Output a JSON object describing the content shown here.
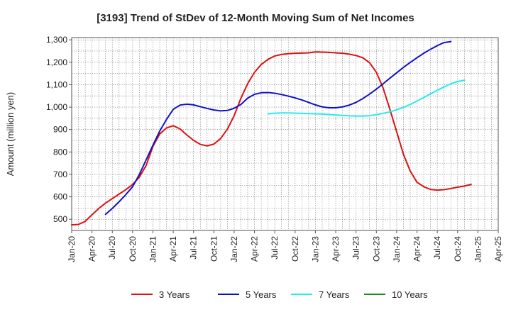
{
  "chart_data": {
    "type": "line",
    "title": "[3193]  Trend of StDev of 12-Month Moving Sum of Net Incomes",
    "xlabel": "",
    "ylabel": "Amount (million yen)",
    "ylim": [
      450,
      1310
    ],
    "yticks": [
      500,
      600,
      700,
      800,
      900,
      1000,
      1100,
      1200,
      1300
    ],
    "ytick_labels": [
      "500",
      "600",
      "700",
      "800",
      "900",
      "1,000",
      "1,100",
      "1,200",
      "1,300"
    ],
    "xlim": [
      "2020-01",
      "2025-04"
    ],
    "xtick_labels": [
      "Jan-20",
      "Apr-20",
      "Jul-20",
      "Oct-20",
      "Jan-21",
      "Apr-21",
      "Jul-21",
      "Oct-21",
      "Jan-22",
      "Apr-22",
      "Jul-22",
      "Oct-22",
      "Jan-23",
      "Apr-23",
      "Jul-23",
      "Oct-23",
      "Jan-24",
      "Apr-24",
      "Jul-24",
      "Oct-24",
      "Jan-25",
      "Apr-25"
    ],
    "grid": true,
    "legend_position": "bottom",
    "series": [
      {
        "name": "3 Years",
        "color": "#dd1111",
        "points": [
          [
            "2020-01",
            475
          ],
          [
            "2020-02",
            477
          ],
          [
            "2020-03",
            490
          ],
          [
            "2020-04",
            520
          ],
          [
            "2020-05",
            548
          ],
          [
            "2020-06",
            572
          ],
          [
            "2020-07",
            592
          ],
          [
            "2020-08",
            612
          ],
          [
            "2020-09",
            632
          ],
          [
            "2020-10",
            655
          ],
          [
            "2020-11",
            688
          ],
          [
            "2020-12",
            740
          ],
          [
            "2021-01",
            825
          ],
          [
            "2021-02",
            880
          ],
          [
            "2021-03",
            907
          ],
          [
            "2021-04",
            917
          ],
          [
            "2021-05",
            903
          ],
          [
            "2021-06",
            876
          ],
          [
            "2021-07",
            852
          ],
          [
            "2021-08",
            834
          ],
          [
            "2021-09",
            827
          ],
          [
            "2021-10",
            835
          ],
          [
            "2021-11",
            860
          ],
          [
            "2021-12",
            902
          ],
          [
            "2022-01",
            962
          ],
          [
            "2022-02",
            1040
          ],
          [
            "2022-03",
            1105
          ],
          [
            "2022-04",
            1155
          ],
          [
            "2022-05",
            1190
          ],
          [
            "2022-06",
            1213
          ],
          [
            "2022-07",
            1228
          ],
          [
            "2022-08",
            1235
          ],
          [
            "2022-09",
            1238
          ],
          [
            "2022-10",
            1240
          ],
          [
            "2022-11",
            1241
          ],
          [
            "2022-12",
            1242
          ],
          [
            "2023-01",
            1246
          ],
          [
            "2023-02",
            1245
          ],
          [
            "2023-03",
            1244
          ],
          [
            "2023-04",
            1242
          ],
          [
            "2023-05",
            1240
          ],
          [
            "2023-06",
            1236
          ],
          [
            "2023-07",
            1230
          ],
          [
            "2023-08",
            1220
          ],
          [
            "2023-09",
            1198
          ],
          [
            "2023-10",
            1155
          ],
          [
            "2023-11",
            1085
          ],
          [
            "2023-12",
            990
          ],
          [
            "2024-01",
            890
          ],
          [
            "2024-02",
            790
          ],
          [
            "2024-03",
            715
          ],
          [
            "2024-04",
            665
          ],
          [
            "2024-05",
            645
          ],
          [
            "2024-06",
            633
          ],
          [
            "2024-07",
            630
          ],
          [
            "2024-08",
            632
          ],
          [
            "2024-09",
            637
          ],
          [
            "2024-10",
            643
          ],
          [
            "2024-11",
            648
          ],
          [
            "2024-12",
            655
          ]
        ]
      },
      {
        "name": "5 Years",
        "color": "#1111cc",
        "points": [
          [
            "2020-06",
            522
          ],
          [
            "2020-07",
            548
          ],
          [
            "2020-08",
            578
          ],
          [
            "2020-09",
            610
          ],
          [
            "2020-10",
            645
          ],
          [
            "2020-11",
            700
          ],
          [
            "2020-12",
            765
          ],
          [
            "2021-01",
            830
          ],
          [
            "2021-02",
            893
          ],
          [
            "2021-03",
            945
          ],
          [
            "2021-04",
            990
          ],
          [
            "2021-05",
            1009
          ],
          [
            "2021-06",
            1013
          ],
          [
            "2021-07",
            1010
          ],
          [
            "2021-08",
            1002
          ],
          [
            "2021-09",
            994
          ],
          [
            "2021-10",
            987
          ],
          [
            "2021-11",
            983
          ],
          [
            "2021-12",
            985
          ],
          [
            "2022-01",
            995
          ],
          [
            "2022-02",
            1012
          ],
          [
            "2022-03",
            1040
          ],
          [
            "2022-04",
            1057
          ],
          [
            "2022-05",
            1064
          ],
          [
            "2022-06",
            1065
          ],
          [
            "2022-07",
            1062
          ],
          [
            "2022-08",
            1056
          ],
          [
            "2022-09",
            1049
          ],
          [
            "2022-10",
            1041
          ],
          [
            "2022-11",
            1032
          ],
          [
            "2022-12",
            1021
          ],
          [
            "2023-01",
            1010
          ],
          [
            "2023-02",
            1001
          ],
          [
            "2023-03",
            997
          ],
          [
            "2023-04",
            997
          ],
          [
            "2023-05",
            1001
          ],
          [
            "2023-06",
            1009
          ],
          [
            "2023-07",
            1021
          ],
          [
            "2023-08",
            1038
          ],
          [
            "2023-09",
            1058
          ],
          [
            "2023-10",
            1080
          ],
          [
            "2023-11",
            1104
          ],
          [
            "2023-12",
            1129
          ],
          [
            "2024-01",
            1153
          ],
          [
            "2024-02",
            1177
          ],
          [
            "2024-03",
            1199
          ],
          [
            "2024-04",
            1220
          ],
          [
            "2024-05",
            1240
          ],
          [
            "2024-06",
            1258
          ],
          [
            "2024-07",
            1274
          ],
          [
            "2024-08",
            1288
          ],
          [
            "2024-09",
            1292
          ]
        ]
      },
      {
        "name": "7 Years",
        "color": "#22eeee",
        "points": [
          [
            "2022-06",
            970
          ],
          [
            "2022-07",
            973
          ],
          [
            "2022-08",
            974
          ],
          [
            "2022-09",
            974
          ],
          [
            "2022-10",
            973
          ],
          [
            "2022-11",
            972
          ],
          [
            "2022-12",
            971
          ],
          [
            "2023-01",
            970
          ],
          [
            "2023-02",
            969
          ],
          [
            "2023-03",
            967
          ],
          [
            "2023-04",
            965
          ],
          [
            "2023-05",
            963
          ],
          [
            "2023-06",
            961
          ],
          [
            "2023-07",
            960
          ],
          [
            "2023-08",
            960
          ],
          [
            "2023-09",
            962
          ],
          [
            "2023-10",
            966
          ],
          [
            "2023-11",
            972
          ],
          [
            "2023-12",
            979
          ],
          [
            "2024-01",
            988
          ],
          [
            "2024-02",
            999
          ],
          [
            "2024-03",
            1012
          ],
          [
            "2024-04",
            1027
          ],
          [
            "2024-05",
            1043
          ],
          [
            "2024-06",
            1059
          ],
          [
            "2024-07",
            1075
          ],
          [
            "2024-08",
            1090
          ],
          [
            "2024-09",
            1104
          ],
          [
            "2024-10",
            1114
          ],
          [
            "2024-11",
            1120
          ]
        ]
      },
      {
        "name": "10 Years",
        "color": "#228822",
        "points": []
      }
    ]
  }
}
